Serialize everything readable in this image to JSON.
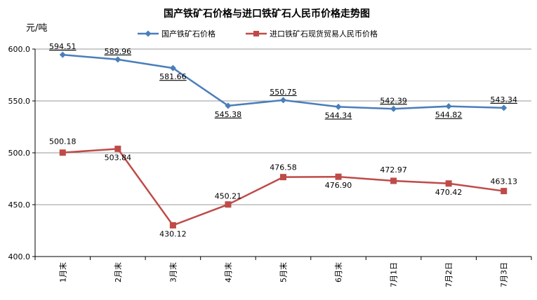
{
  "chart_data": {
    "type": "line",
    "title": "国产铁矿石价格与进口铁矿石人民币价格走势图",
    "ylabel": "元/吨",
    "xlabel": "",
    "ylim": [
      400,
      600
    ],
    "yticks": [
      "600.0",
      "550.0",
      "500.0",
      "450.0",
      "400.0"
    ],
    "categories": [
      "1月末",
      "2月末",
      "3月末",
      "4月末",
      "5月末",
      "6月末",
      "7月1日",
      "7月2日",
      "7月3日"
    ],
    "legend_position": "top",
    "grid": "horizontal",
    "series": [
      {
        "name": "国产铁矿石价格",
        "color": "#4a7ebb",
        "marker": "diamond",
        "values": [
          594.51,
          589.96,
          581.66,
          545.38,
          550.75,
          544.34,
          542.39,
          544.82,
          543.34
        ],
        "labels": [
          "594.51",
          "589.96",
          "581.66",
          "545.38",
          "550.75",
          "544.34",
          "542.39",
          "544.82",
          "543.34"
        ]
      },
      {
        "name": "进口铁矿石现货贸易人民币价格",
        "color": "#be4b48",
        "marker": "square",
        "values": [
          500.18,
          503.84,
          430.12,
          450.21,
          476.58,
          476.9,
          472.97,
          470.42,
          463.13
        ],
        "labels": [
          "500.18",
          "503.84",
          "430.12",
          "450.21",
          "476.58",
          "476.90",
          "472.97",
          "470.42",
          "463.13"
        ]
      }
    ]
  }
}
